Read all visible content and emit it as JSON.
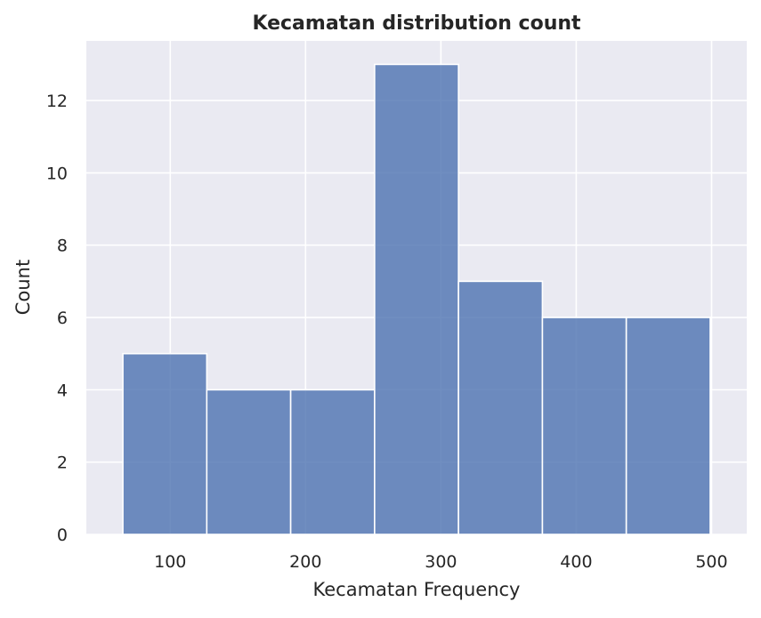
{
  "chart_data": {
    "type": "histogram",
    "title": "Kecamatan distribution count",
    "xlabel": "Kecamatan Frequency",
    "ylabel": "Count",
    "bins": [
      {
        "x0": 65,
        "x1": 127,
        "count": 5
      },
      {
        "x0": 127,
        "x1": 189,
        "count": 4
      },
      {
        "x0": 189,
        "x1": 251,
        "count": 4
      },
      {
        "x0": 251,
        "x1": 313,
        "count": 13
      },
      {
        "x0": 313,
        "x1": 375,
        "count": 7
      },
      {
        "x0": 375,
        "x1": 437,
        "count": 6
      },
      {
        "x0": 437,
        "x1": 499,
        "count": 6
      }
    ],
    "xlim": [
      38,
      526
    ],
    "ylim": [
      0,
      13.65
    ],
    "xticks": [
      100,
      200,
      300,
      400,
      500
    ],
    "yticks": [
      0,
      2,
      4,
      6,
      8,
      10,
      12
    ],
    "grid": true,
    "colors": {
      "bar": "#4c72b0",
      "bar_edge": "#ffffff",
      "background": "#eaeaf2",
      "grid": "#ffffff"
    }
  }
}
